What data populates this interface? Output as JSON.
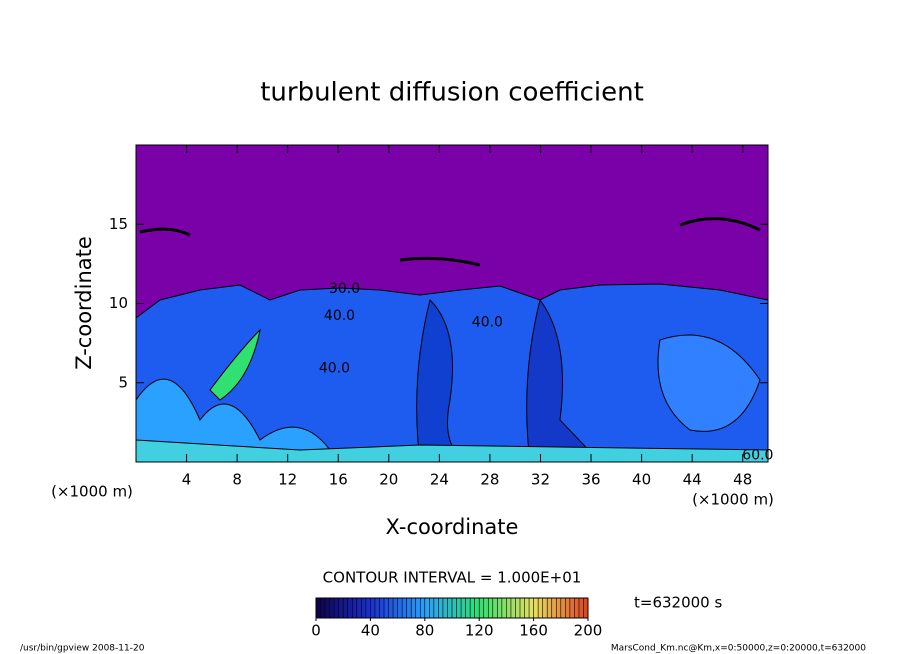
{
  "chart_data": {
    "type": "contour",
    "title": "turbulent diffusion coefficient",
    "x_label": "X-coordinate",
    "y_label": "Z-coordinate",
    "x_unit": "(×1000 m)",
    "y_unit": "(×1000 m)",
    "xlim": [
      0,
      50
    ],
    "xticks": [
      4,
      8,
      12,
      16,
      20,
      24,
      28,
      32,
      36,
      40,
      44,
      48
    ],
    "ylim": [
      0,
      20
    ],
    "yticks": [
      5,
      10,
      15
    ],
    "contour_labels": [
      {
        "text": "30.0",
        "x": 16.5,
        "y": 10.9
      },
      {
        "text": "40.0",
        "x": 16.1,
        "y": 9.2
      },
      {
        "text": "40.0",
        "x": 27.8,
        "y": 8.8
      },
      {
        "text": "40.0",
        "x": 15.7,
        "y": 5.9
      },
      {
        "text": "60.0",
        "x": 49.2,
        "y": 0.4
      }
    ],
    "contour_interval": "CONTOUR INTERVAL = 1.000E+01",
    "colorbar": {
      "lim": [
        0,
        200
      ],
      "ticks": [
        0,
        40,
        80,
        120,
        160,
        200
      ],
      "colors": [
        "#10004a",
        "#1a30d0",
        "#2aa0ff",
        "#30e070",
        "#e8e060",
        "#e04020"
      ]
    },
    "time_label": "t=632000 s",
    "footer_left": "/usr/bin/gpview   2008-11-20",
    "footer_right": "MarsCond_Km.nc@Km,x=0:50000,z=0:20000,t=632000"
  }
}
